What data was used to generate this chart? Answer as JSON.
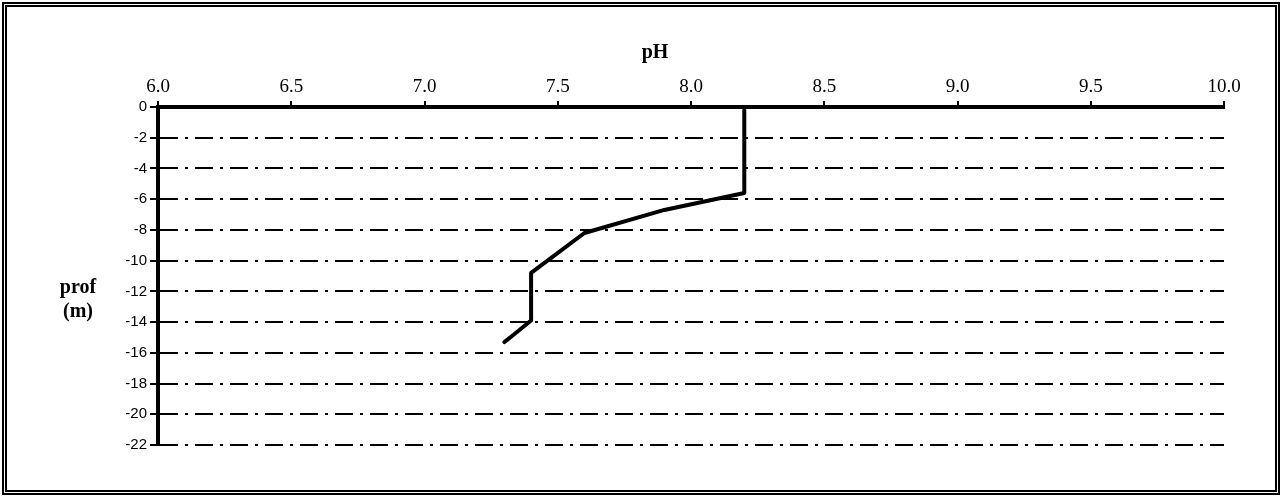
{
  "chart_data": {
    "type": "line",
    "xlabel": "pH",
    "ylabel": "prof (m)",
    "xlim": [
      6,
      10
    ],
    "xticks": [
      {
        "value": 6,
        "label": "6.0"
      },
      {
        "value": 6.5,
        "label": "6.5"
      },
      {
        "value": 7,
        "label": "7.0"
      },
      {
        "value": 7.5,
        "label": "7.5"
      },
      {
        "value": 8,
        "label": "8.0"
      },
      {
        "value": 8.5,
        "label": "8.5"
      },
      {
        "value": 9,
        "label": "9.0"
      },
      {
        "value": 9.5,
        "label": "9.5"
      },
      {
        "value": 10,
        "label": "10.0"
      }
    ],
    "ylim": [
      -22,
      0
    ],
    "yticks": [
      0,
      -2,
      -4,
      -6,
      -8,
      -10,
      -12,
      -14,
      -16,
      -18,
      -20,
      -22
    ],
    "grid": "y",
    "legend": false,
    "marker": "none",
    "line_style": "solid",
    "series": [
      {
        "color": "#000000",
        "x": [
          8.2,
          8.2,
          7.9,
          7.6,
          7.4,
          7.4,
          7.3
        ],
        "values": [
          -0.2,
          -5.6,
          -6.7,
          -8.2,
          -10.8,
          -13.9,
          -15.3
        ]
      }
    ]
  }
}
